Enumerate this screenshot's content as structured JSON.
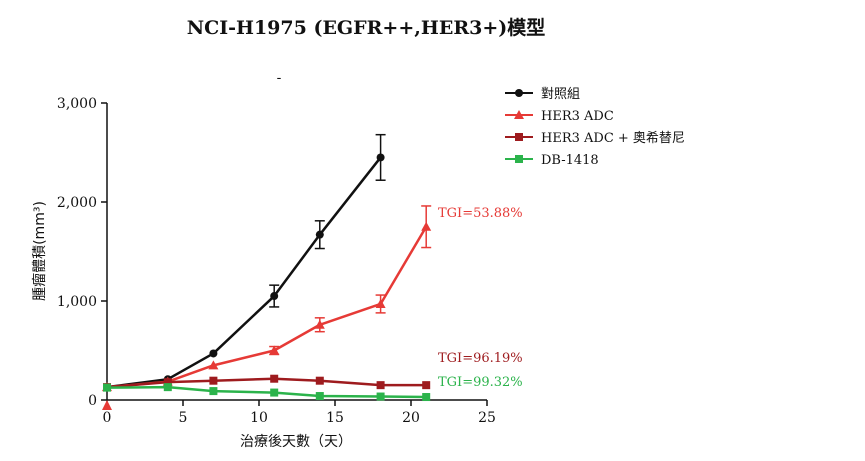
{
  "chart_data": {
    "type": "line",
    "title": "NCI-H1975 (EGFR++,HER3+)模型",
    "xlabel": "治療後天數（天）",
    "ylabel": "腫瘤體積(mm³)",
    "xlim": [
      0,
      25
    ],
    "ylim": [
      0,
      3000
    ],
    "xticks": [
      0,
      5,
      10,
      15,
      20,
      25
    ],
    "xtick_labels": [
      "0",
      "5",
      "10",
      "15",
      "20",
      "25"
    ],
    "yticks": [
      0,
      1000,
      2000,
      3000
    ],
    "ytick_labels": [
      "0",
      "1,000",
      "2,000",
      "3,000"
    ],
    "grid": false,
    "legend_position": "top-right",
    "series": [
      {
        "name": "對照組",
        "color": "#111111",
        "marker": "circle",
        "x": [
          0,
          4,
          7,
          11,
          14,
          18
        ],
        "y": [
          130,
          210,
          470,
          1050,
          1670,
          2450
        ],
        "err": [
          0,
          0,
          0,
          110,
          140,
          230
        ]
      },
      {
        "name": "HER3 ADC",
        "color": "#e63a36",
        "marker": "triangle",
        "x": [
          0,
          4,
          7,
          11,
          14,
          18,
          21
        ],
        "y": [
          130,
          185,
          350,
          500,
          760,
          970,
          1750
        ],
        "err": [
          0,
          0,
          0,
          40,
          70,
          90,
          210
        ]
      },
      {
        "name": "HER3 ADC + 奧希替尼",
        "color": "#9e1b1e",
        "marker": "square",
        "x": [
          0,
          4,
          7,
          11,
          14,
          18,
          21
        ],
        "y": [
          130,
          180,
          195,
          215,
          195,
          150,
          150
        ],
        "err": [
          0,
          0,
          0,
          0,
          0,
          0,
          0
        ]
      },
      {
        "name": "DB-1418",
        "color": "#2bb34b",
        "marker": "square",
        "x": [
          0,
          4,
          7,
          11,
          14,
          18,
          21
        ],
        "y": [
          125,
          130,
          90,
          75,
          40,
          35,
          30
        ],
        "err": [
          0,
          0,
          0,
          0,
          0,
          0,
          0
        ]
      }
    ],
    "annotations": [
      {
        "text": "TGI=53.88%",
        "color": "#e63a36"
      },
      {
        "text": "TGI=96.19%",
        "color": "#9e1b1e"
      },
      {
        "text": "TGI=99.32%",
        "color": "#2bb34b"
      }
    ],
    "stray_mark": "-"
  }
}
